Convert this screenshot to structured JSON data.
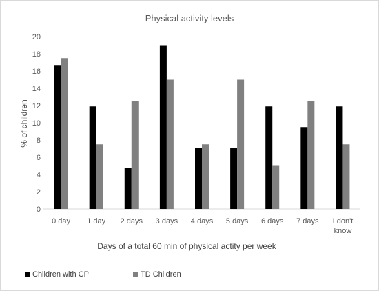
{
  "chart_data": {
    "type": "bar",
    "title": "Physical activity levels",
    "xlabel": "Days of a total 60 min of physical actity per week",
    "ylabel": "%  of children",
    "categories": [
      "0 day",
      "1 day",
      "2 days",
      "3 days",
      "4 days",
      "5 days",
      "6 days",
      "7 days",
      [
        "I don't",
        "know"
      ]
    ],
    "series": [
      {
        "name": "Children with CP",
        "color": "#000000",
        "values": [
          16.7,
          11.9,
          4.8,
          19.0,
          7.1,
          7.1,
          11.9,
          9.5,
          11.9
        ]
      },
      {
        "name": "TD Children",
        "color": "#808080",
        "values": [
          17.5,
          7.5,
          12.5,
          15.0,
          7.5,
          15.0,
          5.0,
          12.5,
          7.5
        ]
      }
    ],
    "ylim": [
      0,
      20
    ],
    "yticks": [
      0,
      2,
      4,
      6,
      8,
      10,
      12,
      14,
      16,
      18,
      20
    ],
    "grid": false,
    "legend_position": "bottom-left"
  }
}
